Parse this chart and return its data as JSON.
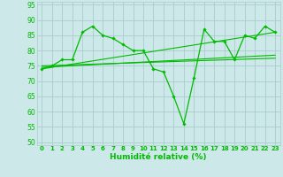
{
  "xlabel": "Humidité relative (%)",
  "background_color": "#cce8e8",
  "grid_color": "#aacccc",
  "line_color": "#00bb00",
  "xlim": [
    -0.5,
    23.5
  ],
  "ylim": [
    49,
    96
  ],
  "yticks": [
    50,
    55,
    60,
    65,
    70,
    75,
    80,
    85,
    90,
    95
  ],
  "xticks": [
    0,
    1,
    2,
    3,
    4,
    5,
    6,
    7,
    8,
    9,
    10,
    11,
    12,
    13,
    14,
    15,
    16,
    17,
    18,
    19,
    20,
    21,
    22,
    23
  ],
  "main_y": [
    74,
    75,
    77,
    77,
    86,
    88,
    85,
    84,
    82,
    80,
    80,
    74,
    73,
    65,
    56,
    71,
    87,
    83,
    83,
    77,
    85,
    84,
    88,
    86
  ],
  "trend1_x": [
    0,
    23
  ],
  "trend1_y": [
    74.0,
    86.0
  ],
  "trend2_x": [
    0,
    23
  ],
  "trend2_y": [
    74.5,
    78.5
  ],
  "trend3_x": [
    0,
    23
  ],
  "trend3_y": [
    75.0,
    77.5
  ]
}
